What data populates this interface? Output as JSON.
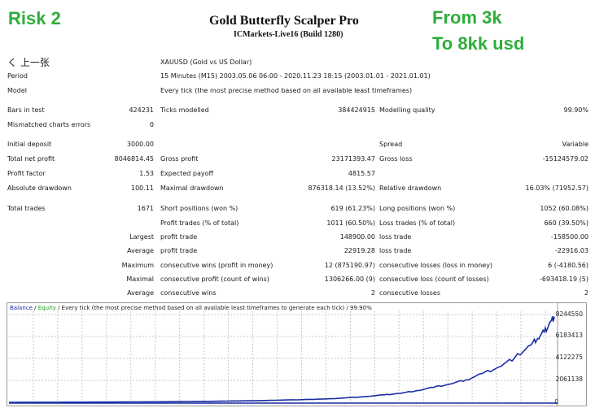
{
  "overlay": {
    "left": "Risk 2",
    "right_line1": "From 3k",
    "right_line2": "To 8kk usd"
  },
  "header": {
    "title": "Gold Butterfly Scalper Pro",
    "subtitle": "ICMarkets-Live16 (Build 1280)",
    "back": "く 上一张"
  },
  "meta": {
    "symbol": "XAUUSD (Gold vs US Dollar)",
    "period_label": "Period",
    "period": "15 Minutes (M15) 2003.05.06 06:00 - 2020.11.23 18:15 (2003.01.01 - 2021.01.01)",
    "model_label": "Model",
    "model": "Every tick (the most precise method based on all available least timeframes)"
  },
  "stats": {
    "bars_label": "Bars in test",
    "bars": "424231",
    "ticks_label": "Ticks modelled",
    "ticks": "384424915",
    "quality_label": "Modelling quality",
    "quality": "99.90%",
    "mismatch_label": "Mismatched charts errors",
    "mismatch": "0",
    "deposit_label": "Initial deposit",
    "deposit": "3000.00",
    "spread_label": "Spread",
    "spread": "Variable",
    "net_label": "Total net profit",
    "net": "8046814.45",
    "gross_profit_label": "Gross profit",
    "gross_profit": "23171393.47",
    "gross_loss_label": "Gross loss",
    "gross_loss": "-15124579.02",
    "pf_label": "Profit factor",
    "pf": "1.53",
    "ep_label": "Expected payoff",
    "ep": "4815.57",
    "abs_dd_label": "Absolute drawdown",
    "abs_dd": "100.11",
    "max_dd_label": "Maximal drawdown",
    "max_dd": "876318.14 (13.52%)",
    "rel_dd_label": "Relative drawdown",
    "rel_dd": "16.03% (71952.57)",
    "trades_label": "Total trades",
    "trades": "1671",
    "short_label": "Short positions (won %)",
    "short": "619 (61.23%)",
    "long_label": "Long positions (won %)",
    "long": "1052 (60.08%)",
    "pt_label": "Profit trades (% of total)",
    "pt": "1011 (60.50%)",
    "lt_label": "Loss trades (% of total)",
    "lt": "660 (39.50%)",
    "largest": "Largest",
    "avg": "Average",
    "maximum": "Maximum",
    "maximal": "Maximal",
    "average2": "Average",
    "lp_label": "profit trade",
    "lp": "148900.00",
    "ll_label": "loss trade",
    "ll": "-158500.00",
    "ap_label": "profit trade",
    "ap": "22919.28",
    "al_label": "loss trade",
    "al": "-22916.03",
    "mcw_label": "consecutive wins (profit in money)",
    "mcw": "12 (875190.97)",
    "mcl_label": "consecutive losses (loss in money)",
    "mcl": "6 (-4180.56)",
    "mcp_label": "consecutive profit (count of wins)",
    "mcp": "1306266.00 (9)",
    "mcloss_label": "consecutive loss (count of losses)",
    "mcloss": "-693418.19 (5)",
    "acw_label": "consecutive wins",
    "acw": "2",
    "acl_label": "consecutive losses",
    "acl": "2"
  },
  "legend": {
    "balance": "Balance",
    "sep1": " / ",
    "equity": "Equity",
    "rest": " / Every tick (the most precise method based on all available least timeframes to generate each tick) / 99.90%"
  },
  "colors": {
    "overlay": "#2fae3a",
    "balance_line": "#1b2fa6",
    "equity": "#1aa01a",
    "grid": "#c8c8c8"
  },
  "chart_data": {
    "type": "line",
    "title": "",
    "xlabel": "",
    "ylabel": "",
    "y_ticks": [
      "8244550",
      "6183413",
      "4122275",
      "2061138",
      "0"
    ],
    "ylim": [
      0,
      8244550
    ],
    "grid": true,
    "series": [
      {
        "name": "Balance",
        "x": [
          0,
          100,
          200,
          300,
          400,
          500,
          600,
          700,
          800,
          900,
          1000,
          1100,
          1150,
          1200,
          1250,
          1300,
          1350,
          1400,
          1450,
          1500,
          1550,
          1600,
          1620,
          1640,
          1660,
          1671
        ],
        "values": [
          3000,
          8000,
          15000,
          25000,
          40000,
          60000,
          90000,
          130000,
          180000,
          250000,
          350000,
          560000,
          700000,
          850000,
          1100000,
          1400000,
          1700000,
          2100000,
          2700000,
          3300000,
          4200000,
          5400000,
          6000000,
          6600000,
          7600000,
          8049814
        ]
      }
    ]
  }
}
